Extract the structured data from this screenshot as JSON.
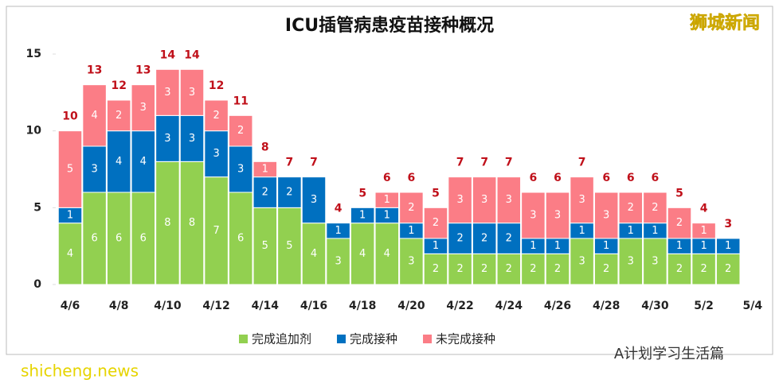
{
  "chart_data": {
    "type": "stacked_bar",
    "title": "ICU插管病患疫苗接种概况",
    "brand": "狮城新闻",
    "watermark": "shicheng.news",
    "source_account": "A计划学习生活篇",
    "categories": [
      "4/6",
      null,
      "4/8",
      null,
      "4/10",
      null,
      "4/12",
      null,
      "4/14",
      null,
      "4/16",
      null,
      "4/18",
      null,
      "4/20",
      null,
      "4/22",
      null,
      "4/24",
      null,
      "4/26",
      null,
      "4/28",
      null,
      "4/30",
      null,
      "5/2",
      null,
      "5/4"
    ],
    "series": [
      {
        "name": "完成追加剂",
        "color": "#92d050",
        "values": [
          4,
          6,
          6,
          6,
          8,
          8,
          7,
          6,
          5,
          5,
          4,
          3,
          4,
          4,
          3,
          2,
          2,
          2,
          2,
          2,
          2,
          3,
          2,
          3,
          3,
          2,
          2,
          2,
          null
        ]
      },
      {
        "name": "完成接种",
        "color": "#0070c0",
        "values": [
          1,
          3,
          4,
          4,
          3,
          3,
          3,
          3,
          2,
          2,
          3,
          1,
          1,
          1,
          1,
          1,
          2,
          2,
          2,
          1,
          1,
          1,
          1,
          1,
          1,
          1,
          1,
          1,
          null
        ]
      },
      {
        "name": "未完成接种",
        "color": "#fb7d86",
        "values": [
          5,
          4,
          2,
          3,
          3,
          3,
          2,
          2,
          1,
          0,
          0,
          0,
          0,
          1,
          2,
          2,
          3,
          3,
          3,
          3,
          3,
          3,
          3,
          2,
          2,
          2,
          1,
          0,
          null
        ]
      }
    ],
    "totals": [
      10,
      13,
      12,
      13,
      14,
      14,
      12,
      11,
      8,
      7,
      7,
      4,
      5,
      6,
      6,
      5,
      7,
      7,
      7,
      6,
      6,
      7,
      6,
      6,
      6,
      5,
      4,
      3,
      null
    ],
    "ylim": [
      0,
      15
    ],
    "yticks": [
      0,
      5,
      10,
      15
    ],
    "grid": false,
    "legend": "bottom"
  }
}
